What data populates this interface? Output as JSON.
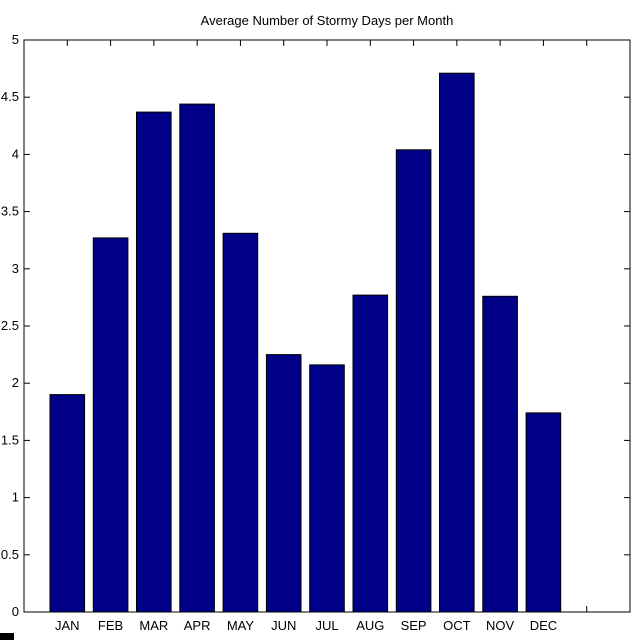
{
  "chart_data": {
    "type": "bar",
    "title": "Average Number of Stormy Days per Month",
    "xlabel": "",
    "ylabel": "",
    "categories": [
      "JAN",
      "FEB",
      "MAR",
      "APR",
      "MAY",
      "JUN",
      "JUL",
      "AUG",
      "SEP",
      "OCT",
      "NOV",
      "DEC"
    ],
    "values": [
      1.9,
      3.27,
      4.37,
      4.44,
      3.31,
      2.25,
      2.16,
      2.77,
      4.04,
      4.71,
      2.76,
      1.74
    ],
    "ylim": [
      0,
      5
    ],
    "yticks": [
      "0",
      "0.5",
      "1",
      "1.5",
      "2",
      "2.5",
      "3",
      "3.5",
      "4",
      "4.5",
      "5"
    ],
    "xlim": [
      0,
      14
    ],
    "grid": false,
    "legend": "none",
    "bar_color": "#000088"
  }
}
